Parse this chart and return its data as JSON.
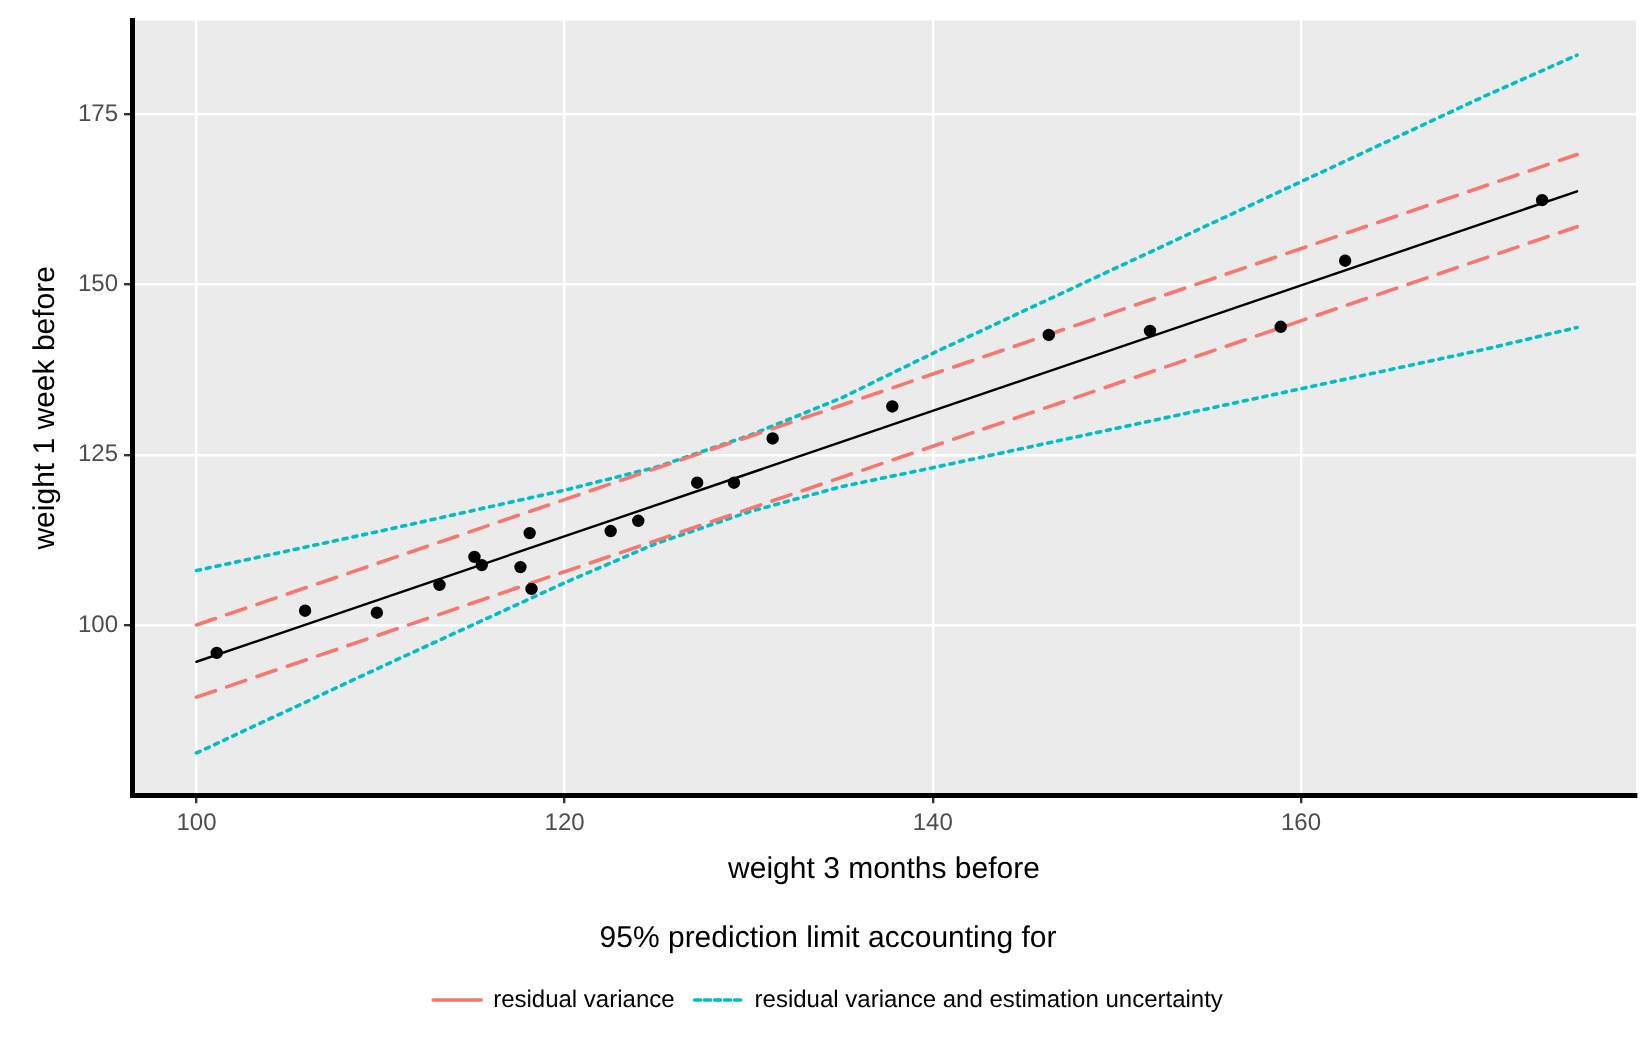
{
  "chart_data": {
    "type": "scatter",
    "xlabel": "weight 3 months before",
    "ylabel": "weight 1 week before",
    "legend_title": "95% prediction limit accounting for",
    "legend": "bottom",
    "grid": true,
    "marker": "circle",
    "xlim": [
      96.5,
      178.2
    ],
    "xticks": [
      100,
      120,
      140,
      160
    ],
    "ylim": [
      75,
      188.8
    ],
    "yticks": [
      100,
      125,
      150,
      175
    ],
    "x": [
      101.1,
      105.9,
      109.8,
      113.2,
      115.1,
      115.5,
      117.6,
      118.1,
      118.2,
      122.5,
      124.0,
      127.2,
      129.2,
      131.3,
      137.8,
      146.3,
      151.8,
      158.9,
      162.4,
      173.1
    ],
    "series": [
      {
        "color": "#000000",
        "values": [
          95.9,
          102.1,
          101.8,
          105.9,
          110.0,
          108.8,
          108.5,
          113.5,
          105.3,
          113.8,
          115.3,
          120.9,
          120.9,
          127.4,
          132.1,
          142.6,
          143.2,
          143.8,
          153.5,
          162.4
        ]
      },
      {
        "type": "line",
        "color": "#000000",
        "line_style": "solid",
        "marker": "none",
        "x": [
          100,
          175
        ],
        "values": [
          94.6,
          163.7
        ]
      },
      {
        "type": "line",
        "name": "residual variance",
        "color": "#f8766d",
        "line_style": "dashed",
        "marker": "none",
        "x": [
          100,
          175
        ],
        "values": [
          100.0,
          169.1
        ]
      },
      {
        "type": "line",
        "color": "#f8766d",
        "line_style": "dashed",
        "marker": "none",
        "x": [
          100,
          175
        ],
        "values": [
          89.4,
          158.5
        ]
      },
      {
        "type": "line",
        "name": "residual variance and estimation uncertainty",
        "color": "#00bfc4",
        "line_style": "dotted",
        "marker": "none",
        "x": [
          100,
          110,
          120,
          125,
          130,
          135,
          140,
          150,
          160,
          170,
          175
        ],
        "values": [
          108.0,
          113.8,
          119.8,
          123.2,
          127.8,
          133.3,
          139.9,
          152.5,
          165.1,
          177.7,
          183.7
        ]
      },
      {
        "type": "line",
        "color": "#00bfc4",
        "line_style": "dotted",
        "marker": "none",
        "x": [
          100,
          110,
          120,
          125,
          130,
          135,
          140,
          150,
          160,
          170,
          175
        ],
        "values": [
          81.2,
          93.8,
          106.2,
          112.0,
          116.6,
          120.3,
          123.1,
          128.9,
          134.7,
          140.5,
          143.7
        ]
      }
    ]
  }
}
